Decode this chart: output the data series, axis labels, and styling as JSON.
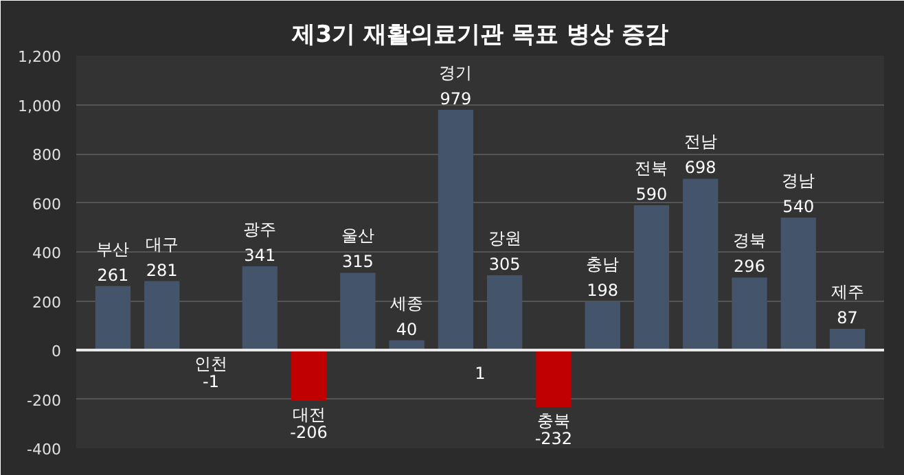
{
  "chart_data": {
    "type": "bar",
    "title": "제3기 재활의료기관 목표 병상 증감",
    "categories": [
      "부산",
      "대구",
      "인천",
      "광주",
      "대전",
      "울산",
      "세종",
      "경기",
      "강원",
      "충북",
      "충남",
      "전북",
      "전남",
      "경북",
      "경남",
      "제주"
    ],
    "values": [
      261,
      281,
      -1,
      341,
      -206,
      315,
      40,
      979,
      305,
      -232,
      198,
      590,
      698,
      296,
      540,
      87
    ],
    "colors": [
      "#44546a",
      "#44546a",
      "#44546a",
      "#44546a",
      "#c00000",
      "#44546a",
      "#44546a",
      "#44546a",
      "#44546a",
      "#c00000",
      "#44546a",
      "#44546a",
      "#44546a",
      "#44546a",
      "#44546a",
      "#44546a"
    ],
    "ylim": [
      -400,
      1200
    ],
    "yticks": [
      {
        "value": -400,
        "label": "-400"
      },
      {
        "value": -200,
        "label": "-200"
      },
      0,
      200,
      400,
      600,
      800,
      {
        "value": 1000,
        "label": "1,000"
      },
      {
        "value": 1200,
        "label": "1,200"
      }
    ],
    "grid": "y",
    "data_labels": true,
    "tick_labels": "y",
    "annotations": [
      "1"
    ]
  }
}
